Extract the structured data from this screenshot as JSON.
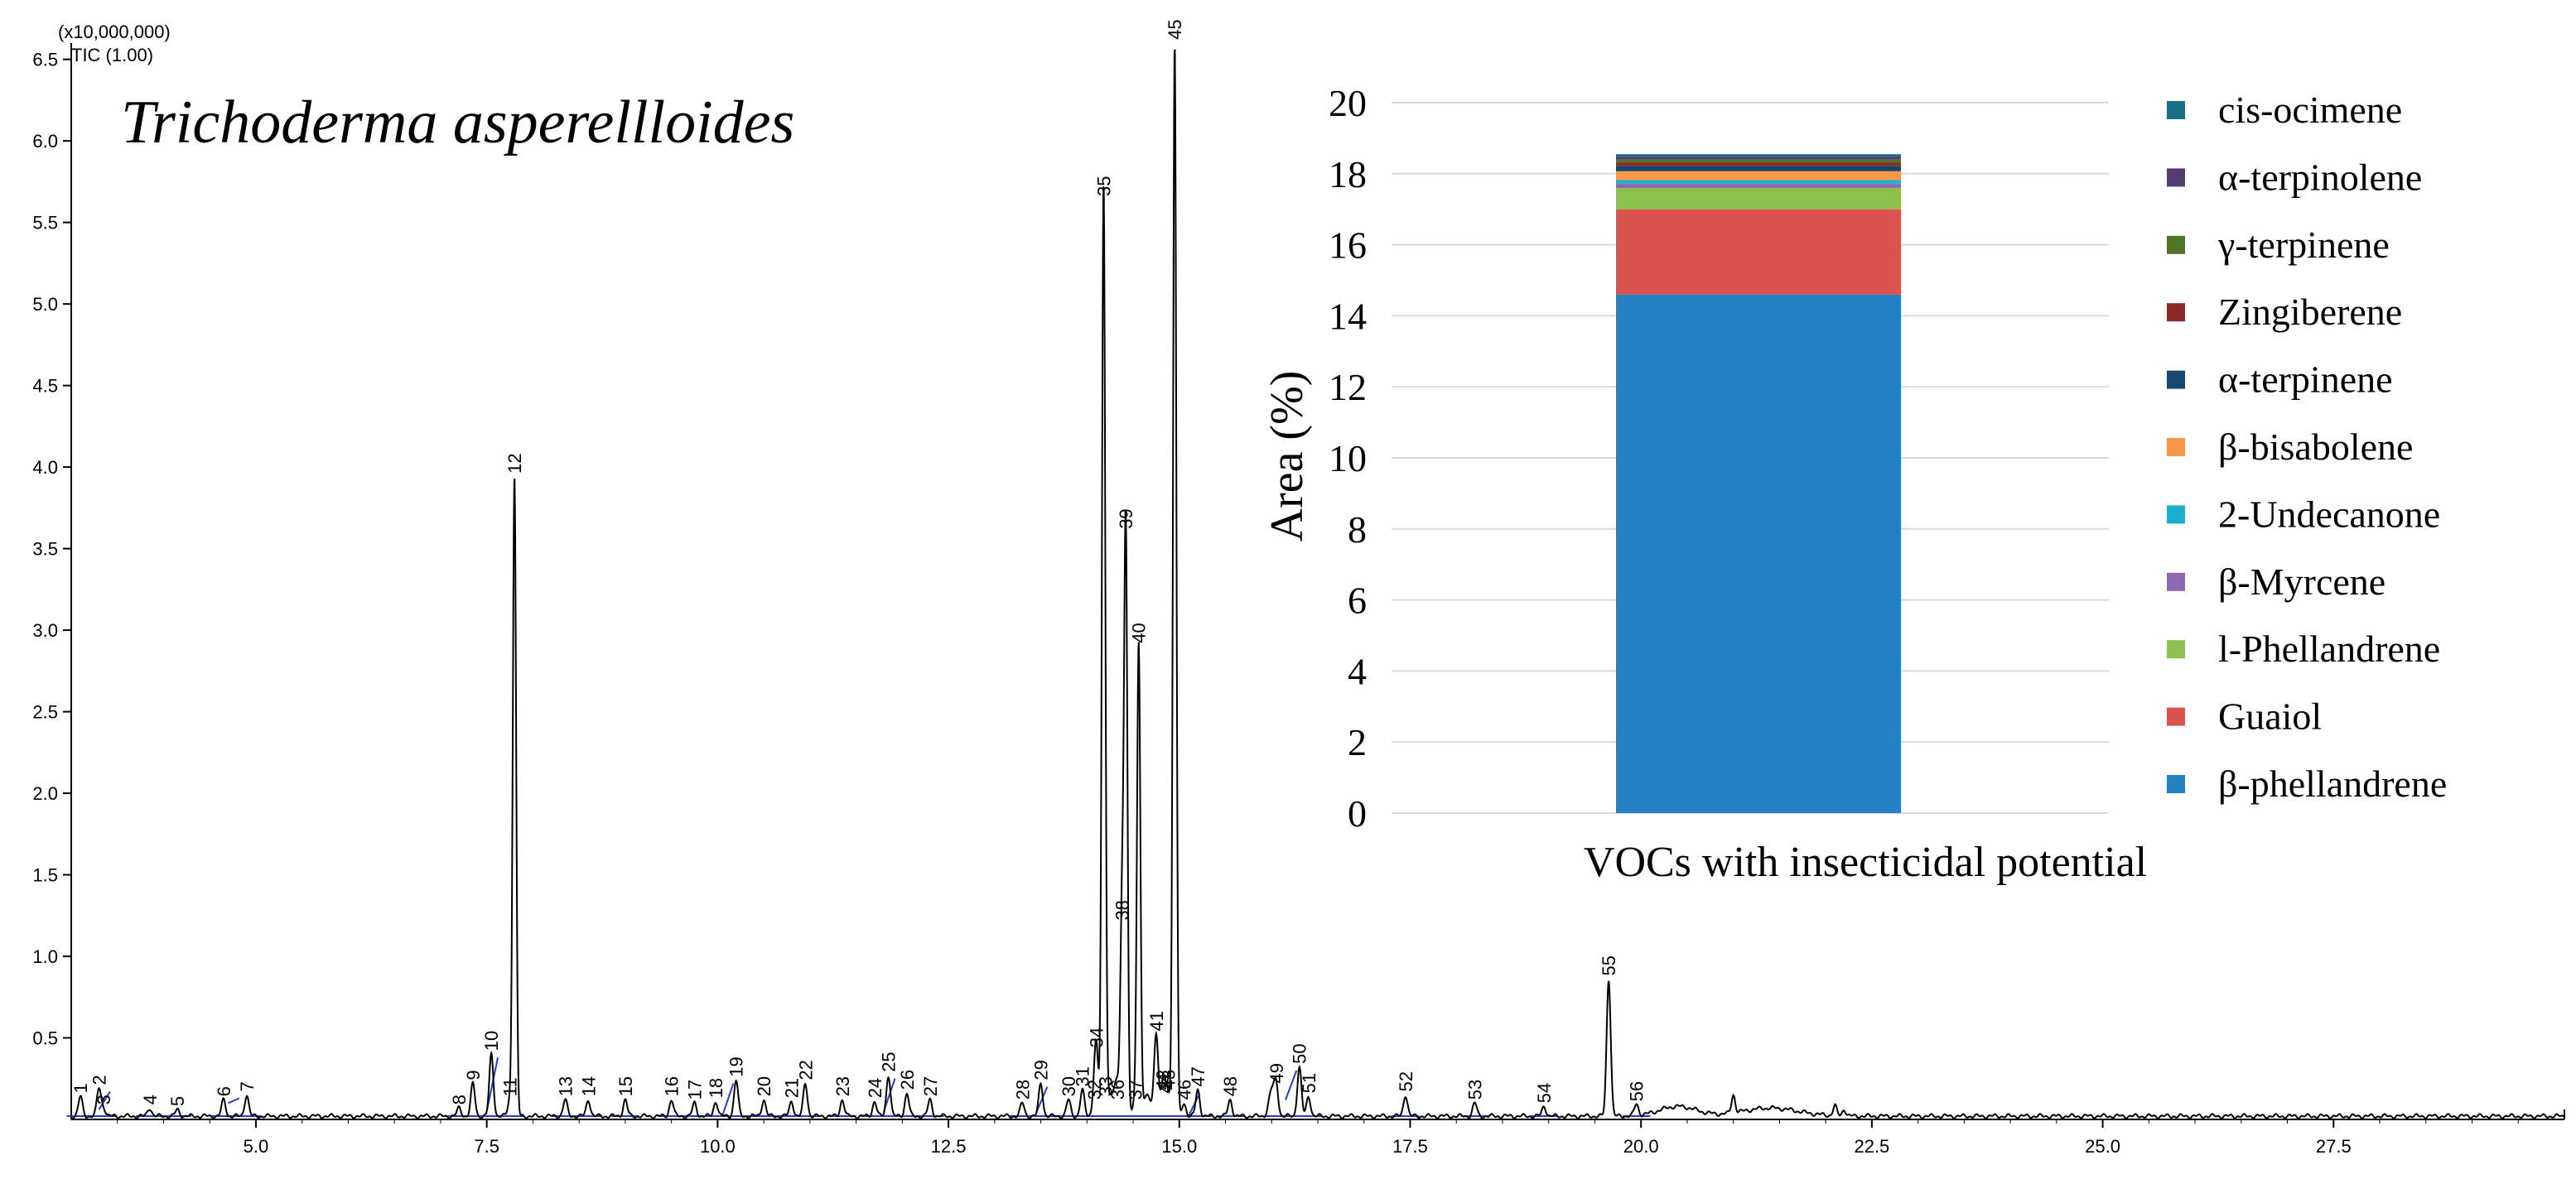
{
  "chart_data": [
    {
      "type": "line",
      "title": "Trichoderma asperellloides",
      "scale_label": "(x10,000,000)",
      "channel_label": "TIC (1.00)",
      "xlabel": "",
      "ylabel": "",
      "xlim": [
        3.0,
        30.0
      ],
      "ylim": [
        0,
        6.6
      ],
      "x_ticks": [
        5.0,
        7.5,
        10.0,
        12.5,
        15.0,
        17.5,
        20.0,
        22.5,
        25.0,
        27.5
      ],
      "x_tick_labels": [
        "5.0",
        "7.5",
        "10.0",
        "12.5",
        "15.0",
        "17.5",
        "20.0",
        "22.5",
        "25.0",
        "27.5"
      ],
      "y_ticks": [
        0.5,
        1.0,
        1.5,
        2.0,
        2.5,
        3.0,
        3.5,
        4.0,
        4.5,
        5.0,
        5.5,
        6.0,
        6.5
      ],
      "y_tick_labels": [
        "0.5",
        "1.0",
        "1.5",
        "2.0",
        "2.5",
        "3.0",
        "3.5",
        "4.0",
        "4.5",
        "5.0",
        "5.5",
        "6.0",
        "6.5"
      ],
      "peaks": [
        {
          "id": "1",
          "rt": 3.1,
          "height": 0.12
        },
        {
          "id": "2",
          "rt": 3.3,
          "height": 0.17
        },
        {
          "id": "3",
          "rt": 3.35,
          "height": 0.05
        },
        {
          "id": "4",
          "rt": 3.85,
          "height": 0.05
        },
        {
          "id": "5",
          "rt": 4.15,
          "height": 0.04
        },
        {
          "id": "6",
          "rt": 4.65,
          "height": 0.1
        },
        {
          "id": "7",
          "rt": 4.9,
          "height": 0.13
        },
        {
          "id": "8",
          "rt": 7.2,
          "height": 0.05
        },
        {
          "id": "9",
          "rt": 7.35,
          "height": 0.2
        },
        {
          "id": "10",
          "rt": 7.55,
          "height": 0.38
        },
        {
          "id": "11",
          "rt": 7.75,
          "height": 0.1
        },
        {
          "id": "12",
          "rt": 7.8,
          "height": 3.92
        },
        {
          "id": "13",
          "rt": 8.35,
          "height": 0.1
        },
        {
          "id": "14",
          "rt": 8.6,
          "height": 0.1
        },
        {
          "id": "15",
          "rt": 9.0,
          "height": 0.1
        },
        {
          "id": "16",
          "rt": 9.5,
          "height": 0.1
        },
        {
          "id": "17",
          "rt": 9.75,
          "height": 0.08
        },
        {
          "id": "18",
          "rt": 9.98,
          "height": 0.09
        },
        {
          "id": "19",
          "rt": 10.2,
          "height": 0.22
        },
        {
          "id": "20",
          "rt": 10.5,
          "height": 0.1
        },
        {
          "id": "21",
          "rt": 10.8,
          "height": 0.09
        },
        {
          "id": "22",
          "rt": 10.95,
          "height": 0.2
        },
        {
          "id": "23",
          "rt": 11.35,
          "height": 0.1
        },
        {
          "id": "24",
          "rt": 11.7,
          "height": 0.09
        },
        {
          "id": "25",
          "rt": 11.85,
          "height": 0.25
        },
        {
          "id": "26",
          "rt": 12.05,
          "height": 0.14
        },
        {
          "id": "27",
          "rt": 12.3,
          "height": 0.1
        },
        {
          "id": "28",
          "rt": 13.3,
          "height": 0.08
        },
        {
          "id": "29",
          "rt": 13.5,
          "height": 0.2
        },
        {
          "id": "30",
          "rt": 13.8,
          "height": 0.1
        },
        {
          "id": "31",
          "rt": 13.95,
          "height": 0.16
        },
        {
          "id": "32",
          "rt": 14.08,
          "height": 0.08
        },
        {
          "id": "33",
          "rt": 14.2,
          "height": 0.1
        },
        {
          "id": "34",
          "rt": 14.1,
          "height": 0.4
        },
        {
          "id": "35",
          "rt": 14.18,
          "height": 5.62
        },
        {
          "id": "36",
          "rt": 14.33,
          "height": 0.08
        },
        {
          "id": "37",
          "rt": 14.52,
          "height": 0.08
        },
        {
          "id": "38",
          "rt": 14.38,
          "height": 1.18
        },
        {
          "id": "39",
          "rt": 14.42,
          "height": 3.58
        },
        {
          "id": "40",
          "rt": 14.56,
          "height": 2.88
        },
        {
          "id": "41",
          "rt": 14.75,
          "height": 0.5
        },
        {
          "id": "42",
          "rt": 14.82,
          "height": 0.14
        },
        {
          "id": "43",
          "rt": 14.88,
          "height": 0.14
        },
        {
          "id": "44",
          "rt": 14.84,
          "height": 0.12
        },
        {
          "id": "45",
          "rt": 14.95,
          "height": 6.58
        },
        {
          "id": "46",
          "rt": 15.05,
          "height": 0.08
        },
        {
          "id": "47",
          "rt": 15.2,
          "height": 0.16
        },
        {
          "id": "48",
          "rt": 15.55,
          "height": 0.1
        },
        {
          "id": "49",
          "rt": 16.05,
          "height": 0.18
        },
        {
          "id": "50",
          "rt": 16.3,
          "height": 0.3
        },
        {
          "id": "51",
          "rt": 16.4,
          "height": 0.12
        },
        {
          "id": "52",
          "rt": 17.45,
          "height": 0.13
        },
        {
          "id": "53",
          "rt": 18.2,
          "height": 0.08
        },
        {
          "id": "54",
          "rt": 18.95,
          "height": 0.06
        },
        {
          "id": "55",
          "rt": 19.65,
          "height": 0.84
        },
        {
          "id": "56",
          "rt": 19.95,
          "height": 0.07
        }
      ]
    },
    {
      "type": "bar",
      "stacked": true,
      "title": "",
      "categories": [
        "VOCs with insecticidal potential"
      ],
      "xlabel": "VOCs with insecticidal potential",
      "ylabel": "Area (%)",
      "ylim": [
        0,
        20
      ],
      "y_ticks": [
        0,
        2,
        4,
        6,
        8,
        10,
        12,
        14,
        16,
        18,
        20
      ],
      "y_tick_labels": [
        "0",
        "2",
        "4",
        "6",
        "8",
        "10",
        "12",
        "14",
        "16",
        "18",
        "20"
      ],
      "legend_position": "right",
      "series": [
        {
          "name": "β-phellandrene",
          "values": [
            14.6
          ],
          "color": "#2480C0"
        },
        {
          "name": "Guaiol",
          "values": [
            2.4
          ],
          "color": "#D9534F"
        },
        {
          "name": "l-Phellandrene",
          "values": [
            0.6
          ],
          "color": "#8DC04F"
        },
        {
          "name": "β-Myrcene",
          "values": [
            0.12
          ],
          "color": "#8E68B0"
        },
        {
          "name": "2-Undecanone",
          "values": [
            0.1
          ],
          "color": "#1AAECF"
        },
        {
          "name": "β-bisabolene",
          "values": [
            0.25
          ],
          "color": "#F79646"
        },
        {
          "name": "α-terpinene",
          "values": [
            0.15
          ],
          "color": "#17476C"
        },
        {
          "name": "Zingiberene",
          "values": [
            0.1
          ],
          "color": "#8B2A28"
        },
        {
          "name": "γ-terpinene",
          "values": [
            0.08
          ],
          "color": "#4F7526"
        },
        {
          "name": "α-terpinolene",
          "values": [
            0.08
          ],
          "color": "#533D6F"
        },
        {
          "name": "cis-ocimene",
          "values": [
            0.07
          ],
          "color": "#1A6E84"
        }
      ]
    }
  ],
  "colors": {
    "trace": "#000000",
    "baseline_mark": "#1F3FD0",
    "axis": "#000000",
    "grid": "#D9D9D9"
  }
}
